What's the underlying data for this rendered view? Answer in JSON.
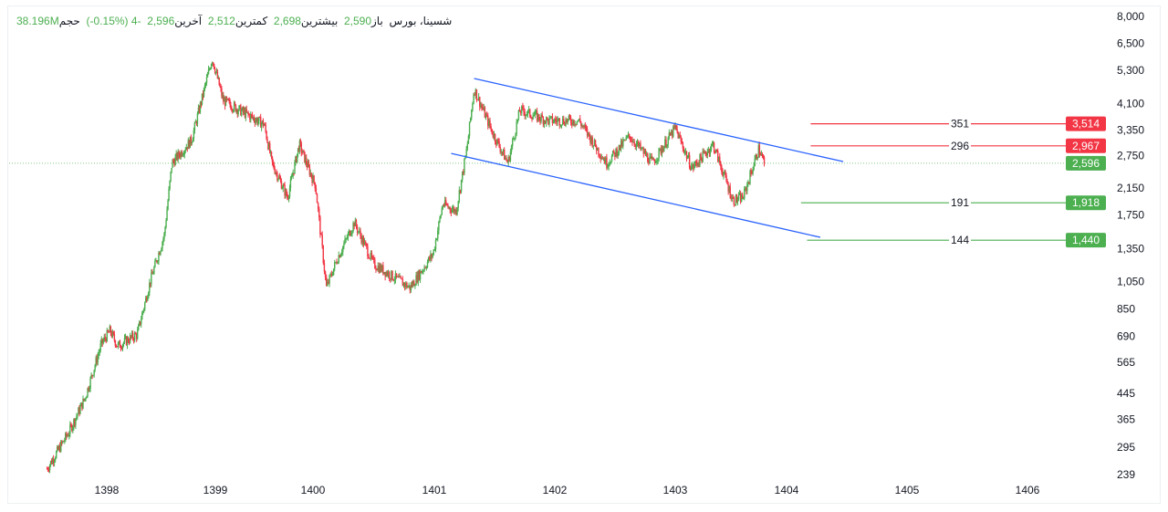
{
  "legend": {
    "symbol": "شسینا، بورس",
    "open_label": "باز",
    "open": "2,590",
    "high_label": "بیشترین",
    "high": "2,698",
    "low_label": "کمترین",
    "low": "2,512",
    "last_label": "آخرین",
    "last": "2,596",
    "change": "-4",
    "change_pct": "(-0.15%)",
    "volume_label": "حجم",
    "volume": "38.196M"
  },
  "chart_data": {
    "type": "candlestick",
    "scale": "log",
    "ylim": [
      239,
      8000
    ],
    "x_ticks": [
      "1398",
      "1399",
      "1400",
      "1401",
      "1402",
      "1403",
      "1404",
      "1405",
      "1406"
    ],
    "y_ticks": [
      "8,000",
      "6,500",
      "5,300",
      "4,100",
      "3,350",
      "2,750",
      "2,150",
      "1,750",
      "1,350",
      "1,050",
      "850",
      "690",
      "565",
      "445",
      "365",
      "295",
      "239"
    ],
    "price_path": [
      [
        1397.45,
        250
      ],
      [
        1397.65,
        330
      ],
      [
        1397.8,
        430
      ],
      [
        1397.95,
        650
      ],
      [
        1398.03,
        720
      ],
      [
        1398.1,
        640
      ],
      [
        1398.28,
        700
      ],
      [
        1398.4,
        1050
      ],
      [
        1398.53,
        1500
      ],
      [
        1398.6,
        2600
      ],
      [
        1398.78,
        3100
      ],
      [
        1398.9,
        4600
      ],
      [
        1398.97,
        5800
      ],
      [
        1399.08,
        4200
      ],
      [
        1399.5,
        3500
      ],
      [
        1399.58,
        2600
      ],
      [
        1399.74,
        2000
      ],
      [
        1399.86,
        3000
      ],
      [
        1400.02,
        2200
      ],
      [
        1400.11,
        1000
      ],
      [
        1400.2,
        1250
      ],
      [
        1400.34,
        1650
      ],
      [
        1400.5,
        1200
      ],
      [
        1400.8,
        1000
      ],
      [
        1400.99,
        1300
      ],
      [
        1401.07,
        1900
      ],
      [
        1401.18,
        1800
      ],
      [
        1401.27,
        2900
      ],
      [
        1401.33,
        4600
      ],
      [
        1401.48,
        3300
      ],
      [
        1401.61,
        2600
      ],
      [
        1401.71,
        3900
      ],
      [
        1401.94,
        3600
      ],
      [
        1402.2,
        3600
      ],
      [
        1402.43,
        2600
      ],
      [
        1402.62,
        3200
      ],
      [
        1402.81,
        2600
      ],
      [
        1403.0,
        3400
      ],
      [
        1403.15,
        2500
      ],
      [
        1403.34,
        3000
      ],
      [
        1403.52,
        1950
      ],
      [
        1403.61,
        2000
      ],
      [
        1403.75,
        2900
      ],
      [
        1403.8,
        2596
      ]
    ],
    "last_price": 2596,
    "last_price_label": "2,596",
    "channel": {
      "upper": [
        [
          1401.33,
          4970
        ],
        [
          1404.47,
          2630
        ]
      ],
      "lower": [
        [
          1401.14,
          2800
        ],
        [
          1404.28,
          1472
        ]
      ]
    },
    "levels": [
      {
        "price": 3514,
        "label": "3,514",
        "distance": "351",
        "color": "#f23645",
        "from": 1404.2
      },
      {
        "price": 2967,
        "label": "2,967",
        "distance": "296",
        "color": "#f23645",
        "from": 1404.2
      },
      {
        "price": 1918,
        "label": "1,918",
        "distance": "191",
        "color": "#4caf50",
        "from": 1404.12
      },
      {
        "price": 1440,
        "label": "1,440",
        "distance": "144",
        "color": "#4caf50",
        "from": 1404.17
      }
    ],
    "colors": {
      "up": "#4caf50",
      "down": "#f23645",
      "channel": "#2962ff",
      "last": "#4caf50"
    }
  }
}
